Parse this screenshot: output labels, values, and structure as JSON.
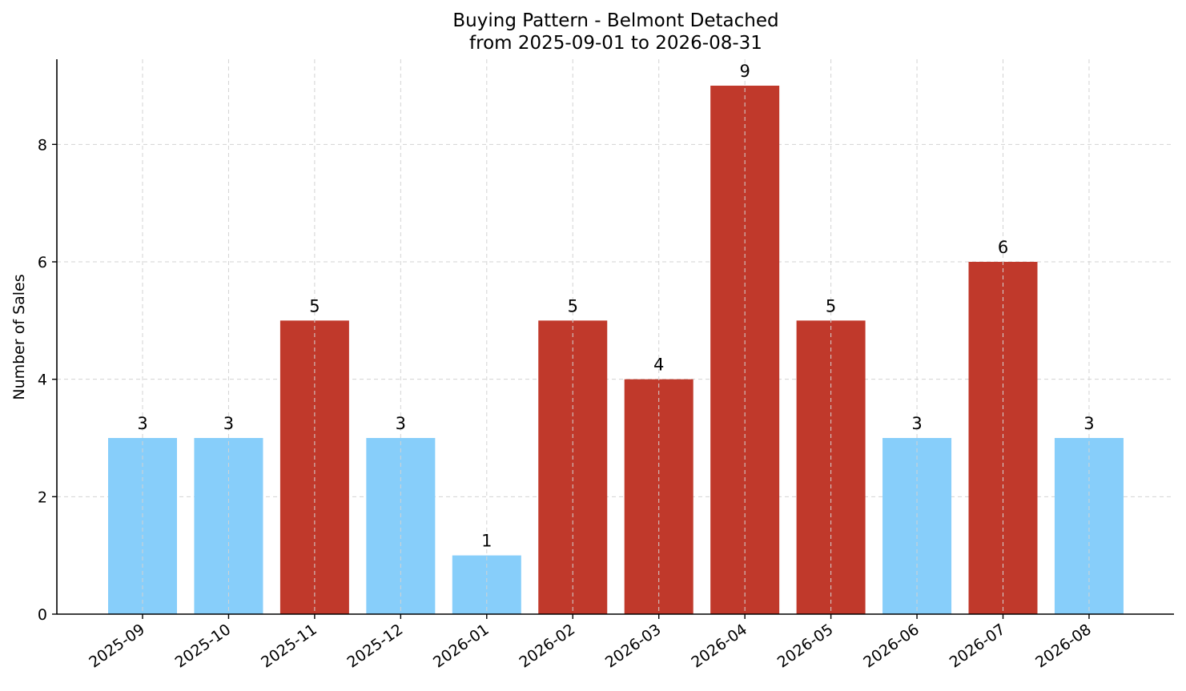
{
  "chart_data": {
    "type": "bar",
    "title": "Buying Pattern - Belmont Detached",
    "subtitle": "from 2025-09-01 to 2026-08-31",
    "xlabel": "",
    "ylabel": "Number of Sales",
    "categories": [
      "2025-09",
      "2025-10",
      "2025-11",
      "2025-12",
      "2026-01",
      "2026-02",
      "2026-03",
      "2026-04",
      "2026-05",
      "2026-06",
      "2026-07",
      "2026-08"
    ],
    "values": [
      3,
      3,
      5,
      3,
      1,
      5,
      4,
      9,
      5,
      3,
      6,
      3
    ],
    "bar_colors": [
      "#87cefa",
      "#87cefa",
      "#c0392b",
      "#87cefa",
      "#87cefa",
      "#c0392b",
      "#c0392b",
      "#c0392b",
      "#c0392b",
      "#87cefa",
      "#c0392b",
      "#87cefa"
    ],
    "ylim": [
      0,
      9.45
    ],
    "yticks": [
      0,
      2,
      4,
      6,
      8
    ],
    "grid": true,
    "legend": "none"
  }
}
